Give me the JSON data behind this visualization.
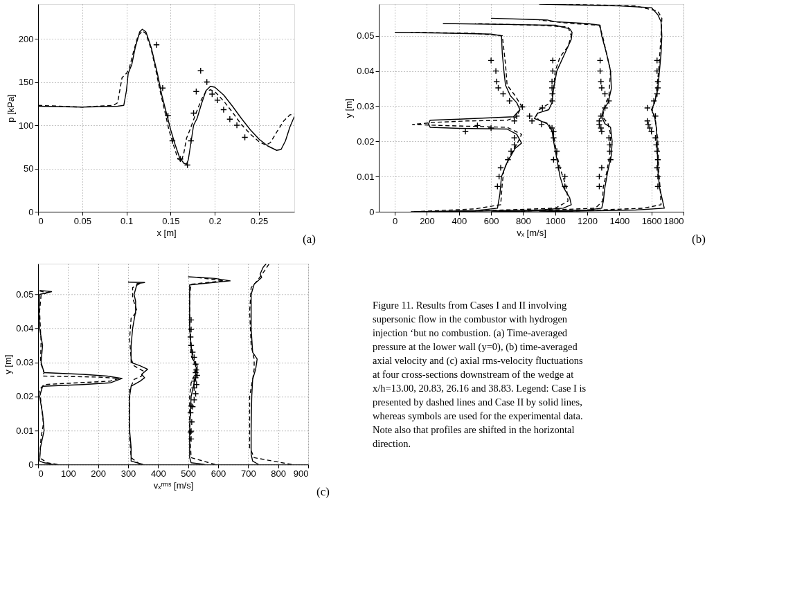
{
  "chart_data": [
    {
      "type": "line",
      "xlabel": "x [m]",
      "ylabel": "p [kPa]",
      "xlim": [
        0,
        0.29
      ],
      "ylim": [
        0,
        240
      ],
      "xticks": [
        0,
        0.05,
        0.1,
        0.15,
        0.2,
        0.25
      ],
      "yticks": [
        0,
        50,
        100,
        150,
        200
      ],
      "grid": true,
      "annotations": [
        "(a)"
      ],
      "series": [
        {
          "type": "line",
          "color": "#000000",
          "line_style": "solid",
          "x": [
            0,
            0.05,
            0.09,
            0.097,
            0.1,
            0.102,
            0.106,
            0.11,
            0.115,
            0.118,
            0.122,
            0.128,
            0.135,
            0.14,
            0.145,
            0.15,
            0.155,
            0.16,
            0.165,
            0.168,
            0.17,
            0.173,
            0.176,
            0.18,
            0.185,
            0.19,
            0.195,
            0.2,
            0.21,
            0.22,
            0.23,
            0.24,
            0.25,
            0.26,
            0.27,
            0.275,
            0.28,
            0.285,
            0.29
          ],
          "values": [
            122,
            121,
            122,
            123,
            140,
            160,
            170,
            190,
            208,
            211,
            208,
            190,
            160,
            135,
            115,
            95,
            78,
            63,
            56,
            55,
            60,
            80,
            100,
            108,
            125,
            140,
            145,
            144,
            135,
            122,
            108,
            95,
            84,
            76,
            71,
            72,
            82,
            98,
            110
          ]
        },
        {
          "type": "line",
          "color": "#000000",
          "line_style": "dashed",
          "x": [
            0,
            0.05,
            0.085,
            0.09,
            0.095,
            0.1,
            0.103,
            0.108,
            0.113,
            0.118,
            0.122,
            0.128,
            0.133,
            0.138,
            0.143,
            0.148,
            0.153,
            0.158,
            0.162,
            0.165,
            0.168,
            0.172,
            0.178,
            0.185,
            0.19,
            0.195,
            0.2,
            0.21,
            0.22,
            0.23,
            0.24,
            0.25,
            0.258,
            0.263,
            0.27,
            0.278,
            0.285,
            0.29
          ],
          "values": [
            123,
            121,
            123,
            126,
            155,
            160,
            165,
            185,
            203,
            209,
            206,
            188,
            165,
            140,
            118,
            95,
            78,
            62,
            58,
            68,
            85,
            95,
            112,
            130,
            139,
            141,
            139,
            128,
            115,
            101,
            90,
            81,
            77,
            80,
            92,
            105,
            112,
            113
          ]
        },
        {
          "type": "scatter",
          "marker": "cross",
          "color": "#000000",
          "x": [
            0.134,
            0.141,
            0.147,
            0.152,
            0.161,
            0.169,
            0.173,
            0.176,
            0.179,
            0.184,
            0.191,
            0.197,
            0.203,
            0.21,
            0.217,
            0.225,
            0.234
          ],
          "values": [
            193,
            143,
            111,
            82,
            61,
            54,
            82,
            114,
            139,
            163,
            150,
            136,
            129,
            118,
            107,
            100,
            86
          ]
        }
      ]
    },
    {
      "type": "line",
      "xlabel": "vₓ [m/s]",
      "ylabel": "y [m]",
      "xlim": [
        -100,
        1800
      ],
      "ylim": [
        0,
        0.059
      ],
      "xticks": [
        0,
        200,
        400,
        600,
        800,
        1000,
        1200,
        1400,
        1600,
        1800
      ],
      "yticks": [
        0,
        0.01,
        0.02,
        0.03,
        0.04,
        0.05
      ],
      "grid": true,
      "annotations": [
        "(b)"
      ],
      "series": [
        {
          "type": "line",
          "color": "#000000",
          "line_style": "solid",
          "x": [
            100,
            500,
            640,
            655,
            665,
            700,
            750,
            790,
            760,
            700,
            400,
            220,
            210,
            220,
            400,
            740,
            780,
            760,
            720,
            690,
            680,
            670,
            665,
            600,
            300,
            0
          ],
          "values": [
            0,
            0.0003,
            0.001,
            0.005,
            0.01,
            0.014,
            0.018,
            0.0195,
            0.022,
            0.0235,
            0.0237,
            0.024,
            0.025,
            0.026,
            0.0263,
            0.027,
            0.029,
            0.031,
            0.033,
            0.036,
            0.04,
            0.045,
            0.05,
            0.0505,
            0.0508,
            0.051
          ]
        },
        {
          "type": "line",
          "color": "#000000",
          "line_style": "dashed",
          "x": [
            120,
            500,
            660,
            670,
            680,
            720,
            770,
            790,
            700,
            300,
            110,
            250,
            450,
            700,
            760,
            790,
            750,
            700,
            690,
            680,
            670,
            500,
            100
          ],
          "values": [
            0,
            0.0008,
            0.002,
            0.008,
            0.012,
            0.016,
            0.02,
            0.022,
            0.024,
            0.0245,
            0.0248,
            0.0254,
            0.0258,
            0.026,
            0.027,
            0.03,
            0.033,
            0.036,
            0.042,
            0.046,
            0.05,
            0.0507,
            0.051
          ]
        },
        {
          "type": "scatter",
          "marker": "cross",
          "color": "#000000",
          "x": [
            600,
            630,
            635,
            645,
            675,
            715,
            795,
            760,
            745,
            515,
            600,
            440,
            745,
            745,
            725,
            705,
            660,
            650,
            640
          ],
          "values": [
            0.043,
            0.04,
            0.037,
            0.0352,
            0.0335,
            0.0315,
            0.0298,
            0.0272,
            0.0258,
            0.0245,
            0.0238,
            0.0228,
            0.021,
            0.019,
            0.0172,
            0.0148,
            0.0125,
            0.01,
            0.0072
          ]
        },
        {
          "type": "line",
          "color": "#000000",
          "line_style": "solid",
          "x": [
            300,
            900,
            1050,
            1100,
            1090,
            1050,
            1030,
            1010,
            990,
            980,
            950,
            900,
            870,
            890,
            960,
            980,
            990,
            1010,
            1060,
            1100,
            1105,
            1090,
            1000,
            600,
            300
          ],
          "values": [
            0,
            0.0005,
            0.001,
            0.002,
            0.004,
            0.007,
            0.01,
            0.015,
            0.02,
            0.023,
            0.025,
            0.026,
            0.0265,
            0.028,
            0.029,
            0.031,
            0.035,
            0.04,
            0.045,
            0.049,
            0.051,
            0.052,
            0.053,
            0.0533,
            0.0535
          ]
        },
        {
          "type": "line",
          "color": "#000000",
          "line_style": "dashed",
          "x": [
            350,
            1000,
            1080,
            1070,
            1040,
            1010,
            990,
            960,
            900,
            880,
            900,
            970,
            990,
            1000,
            1030,
            1080,
            1100,
            1080,
            900,
            500
          ],
          "values": [
            0,
            0.001,
            0.003,
            0.007,
            0.011,
            0.016,
            0.022,
            0.025,
            0.026,
            0.027,
            0.029,
            0.031,
            0.035,
            0.04,
            0.044,
            0.047,
            0.05,
            0.0525,
            0.053,
            0.0535
          ]
        },
        {
          "type": "scatter",
          "marker": "cross",
          "color": "#000000",
          "x": [
            985,
            985,
            980,
            980,
            982,
            982,
            920,
            840,
            855,
            915,
            980,
            990,
            990,
            1010,
            990,
            1020,
            1060,
            1060
          ],
          "values": [
            0.043,
            0.04,
            0.037,
            0.0352,
            0.0335,
            0.0315,
            0.0295,
            0.0272,
            0.0258,
            0.0248,
            0.0238,
            0.0228,
            0.021,
            0.0172,
            0.0148,
            0.0125,
            0.01,
            0.0072
          ]
        },
        {
          "type": "line",
          "color": "#000000",
          "line_style": "solid",
          "x": [
            600,
            1200,
            1290,
            1300,
            1310,
            1330,
            1350,
            1355,
            1345,
            1310,
            1290,
            1300,
            1330,
            1350,
            1345,
            1320,
            1290,
            1280,
            1200,
            1000,
            950,
            600
          ],
          "values": [
            0,
            0.0005,
            0.001,
            0.003,
            0.007,
            0.012,
            0.016,
            0.02,
            0.024,
            0.025,
            0.027,
            0.029,
            0.031,
            0.035,
            0.04,
            0.045,
            0.05,
            0.053,
            0.0535,
            0.054,
            0.0545,
            0.055
          ]
        },
        {
          "type": "line",
          "color": "#000000",
          "line_style": "dashed",
          "x": [
            700,
            1250,
            1295,
            1300,
            1320,
            1340,
            1345,
            1330,
            1295,
            1310,
            1335,
            1345,
            1320,
            1295,
            1275,
            1100,
            900
          ],
          "values": [
            0,
            0.001,
            0.003,
            0.007,
            0.011,
            0.016,
            0.022,
            0.025,
            0.027,
            0.03,
            0.033,
            0.04,
            0.045,
            0.05,
            0.053,
            0.0535,
            0.0545
          ]
        },
        {
          "type": "scatter",
          "marker": "cross",
          "color": "#000000",
          "x": [
            1280,
            1280,
            1285,
            1290,
            1310,
            1335,
            1310,
            1285,
            1275,
            1275,
            1285,
            1290,
            1335,
            1340,
            1340,
            1345,
            1290,
            1275,
            1275
          ],
          "values": [
            0.043,
            0.04,
            0.037,
            0.0352,
            0.0335,
            0.0315,
            0.0295,
            0.0272,
            0.0258,
            0.0248,
            0.0238,
            0.0228,
            0.021,
            0.019,
            0.0172,
            0.0148,
            0.0125,
            0.01,
            0.0072
          ]
        },
        {
          "type": "line",
          "color": "#000000",
          "line_style": "solid",
          "x": [
            900,
            1500,
            1680,
            1670,
            1650,
            1640,
            1635,
            1630,
            1620,
            1600,
            1620,
            1640,
            1650,
            1660,
            1665,
            1660,
            1640,
            1600,
            1400,
            900
          ],
          "values": [
            0,
            0.0005,
            0.001,
            0.003,
            0.007,
            0.012,
            0.02,
            0.024,
            0.027,
            0.029,
            0.031,
            0.035,
            0.04,
            0.045,
            0.05,
            0.054,
            0.056,
            0.058,
            0.0585,
            0.059
          ]
        },
        {
          "type": "line",
          "color": "#000000",
          "line_style": "dashed",
          "x": [
            1000,
            1550,
            1660,
            1655,
            1645,
            1640,
            1625,
            1605,
            1625,
            1645,
            1660,
            1665,
            1640,
            1500,
            1000
          ],
          "values": [
            0,
            0.001,
            0.002,
            0.006,
            0.012,
            0.02,
            0.026,
            0.029,
            0.032,
            0.04,
            0.05,
            0.055,
            0.057,
            0.0585,
            0.059
          ]
        },
        {
          "type": "scatter",
          "marker": "cross",
          "color": "#000000",
          "x": [
            1635,
            1635,
            1640,
            1640,
            1635,
            1615,
            1575,
            1625,
            1575,
            1580,
            1590,
            1600,
            1625,
            1630,
            1635,
            1640,
            1635,
            1640,
            1640
          ],
          "values": [
            0.043,
            0.04,
            0.037,
            0.0352,
            0.0335,
            0.0315,
            0.0295,
            0.0272,
            0.0258,
            0.0248,
            0.0238,
            0.0228,
            0.021,
            0.019,
            0.0172,
            0.0148,
            0.0125,
            0.01,
            0.0072
          ]
        }
      ]
    },
    {
      "type": "line",
      "xlabel": "vₓʳᵐˢ [m/s]",
      "ylabel": "y [m]",
      "xlim": [
        0,
        900
      ],
      "ylim": [
        0,
        0.059
      ],
      "xticks": [
        0,
        100,
        200,
        300,
        400,
        500,
        600,
        700,
        800,
        900
      ],
      "yticks": [
        0,
        0.01,
        0.02,
        0.03,
        0.04,
        0.05
      ],
      "grid": true,
      "annotations": [
        "(c)"
      ],
      "series": [
        {
          "type": "line",
          "color": "#000000",
          "line_style": "solid",
          "x": [
            50,
            20,
            5,
            8,
            20,
            15,
            5,
            15,
            150,
            240,
            280,
            230,
            150,
            20,
            10,
            15,
            5,
            3,
            5,
            45,
            5
          ],
          "values": [
            0,
            0.0005,
            0.001,
            0.005,
            0.01,
            0.015,
            0.02,
            0.023,
            0.0235,
            0.024,
            0.0253,
            0.026,
            0.0265,
            0.027,
            0.03,
            0.035,
            0.04,
            0.045,
            0.05,
            0.0508,
            0.0512
          ]
        },
        {
          "type": "line",
          "color": "#000000",
          "line_style": "dashed",
          "x": [
            65,
            30,
            5,
            10,
            18,
            10,
            5,
            20,
            240,
            270,
            200,
            15,
            20,
            8,
            10,
            5,
            10,
            30,
            5
          ],
          "values": [
            0,
            0.0005,
            0.002,
            0.008,
            0.012,
            0.018,
            0.022,
            0.0235,
            0.0245,
            0.0253,
            0.0257,
            0.026,
            0.027,
            0.03,
            0.036,
            0.045,
            0.0498,
            0.0505,
            0.051
          ]
        },
        {
          "type": "line",
          "color": "#000000",
          "line_style": "solid",
          "x": [
            350,
            310,
            310,
            305,
            305,
            305,
            310,
            340,
            355,
            345,
            365,
            340,
            310,
            310,
            315,
            325,
            325,
            320,
            330,
            355,
            300
          ],
          "values": [
            0,
            0.001,
            0.005,
            0.01,
            0.015,
            0.02,
            0.023,
            0.0245,
            0.0255,
            0.0265,
            0.028,
            0.029,
            0.03,
            0.035,
            0.04,
            0.045,
            0.048,
            0.05,
            0.0532,
            0.0535,
            0.0536
          ]
        },
        {
          "type": "line",
          "color": "#000000",
          "line_style": "dashed",
          "x": [
            340,
            310,
            305,
            305,
            305,
            320,
            345,
            350,
            320,
            310,
            305,
            310,
            330,
            315,
            315,
            345
          ],
          "values": [
            0,
            0.002,
            0.008,
            0.015,
            0.022,
            0.025,
            0.026,
            0.0275,
            0.029,
            0.031,
            0.037,
            0.043,
            0.045,
            0.049,
            0.052,
            0.0535
          ]
        },
        {
          "type": "line",
          "color": "#000000",
          "line_style": "solid",
          "x": [
            555,
            510,
            505,
            505,
            510,
            520,
            530,
            530,
            515,
            510,
            505,
            505,
            505,
            640,
            590,
            500
          ],
          "values": [
            0,
            0.0005,
            0.002,
            0.01,
            0.02,
            0.024,
            0.027,
            0.029,
            0.031,
            0.035,
            0.04,
            0.05,
            0.0528,
            0.054,
            0.0547,
            0.0552
          ]
        },
        {
          "type": "line",
          "color": "#000000",
          "line_style": "dashed",
          "x": [
            590,
            510,
            505,
            505,
            510,
            520,
            525,
            510,
            505,
            505,
            510,
            620,
            530
          ],
          "values": [
            0,
            0.002,
            0.01,
            0.02,
            0.024,
            0.026,
            0.029,
            0.032,
            0.04,
            0.05,
            0.053,
            0.054,
            0.055
          ]
        },
        {
          "type": "scatter",
          "marker": "cross",
          "color": "#000000",
          "x": [
            510,
            510,
            508,
            510,
            515,
            520,
            525,
            527,
            525,
            530,
            525,
            520,
            528,
            520,
            525,
            520,
            510,
            515,
            508,
            512,
            510,
            508,
            510
          ],
          "values": [
            0.0425,
            0.0397,
            0.0375,
            0.035,
            0.033,
            0.0315,
            0.0295,
            0.0278,
            0.027,
            0.0262,
            0.0255,
            0.0245,
            0.0235,
            0.0225,
            0.0208,
            0.019,
            0.0172,
            0.017,
            0.0152,
            0.0125,
            0.0098,
            0.0095,
            0.0075
          ]
        },
        {
          "type": "line",
          "color": "#000000",
          "line_style": "solid",
          "x": [
            735,
            715,
            710,
            710,
            712,
            715,
            725,
            730,
            715,
            710,
            710,
            720,
            745,
            740,
            750,
            760
          ],
          "values": [
            0,
            0.001,
            0.003,
            0.01,
            0.02,
            0.025,
            0.028,
            0.031,
            0.033,
            0.04,
            0.05,
            0.053,
            0.055,
            0.056,
            0.058,
            0.059
          ]
        },
        {
          "type": "line",
          "color": "#000000",
          "line_style": "dashed",
          "x": [
            845,
            720,
            705,
            705,
            715,
            720,
            720,
            710,
            705,
            710,
            730,
            755,
            770
          ],
          "values": [
            0,
            0.002,
            0.005,
            0.02,
            0.025,
            0.028,
            0.031,
            0.035,
            0.045,
            0.052,
            0.054,
            0.057,
            0.059
          ]
        }
      ]
    },
    {
      "type": "other",
      "annotations": [
        "Figure 11. Results from Cases I and II involving supersonic flow in the combustor with hydrogen injection ‘but no combustion. (a) Time-averaged pressure at the lower wall (y=0), (b) time-averaged axial velocity and (c) axial rms-velocity fluctuations at four cross-sections downstream of the wedge at x/h=13.00, 20.83, 26.16 and 38.83. Legend: Case I is presented by dashed lines and Case II by solid lines, whereas symbols are used for the experimental data. Note also that profiles are shifted in the horizontal direction."
      ]
    }
  ]
}
